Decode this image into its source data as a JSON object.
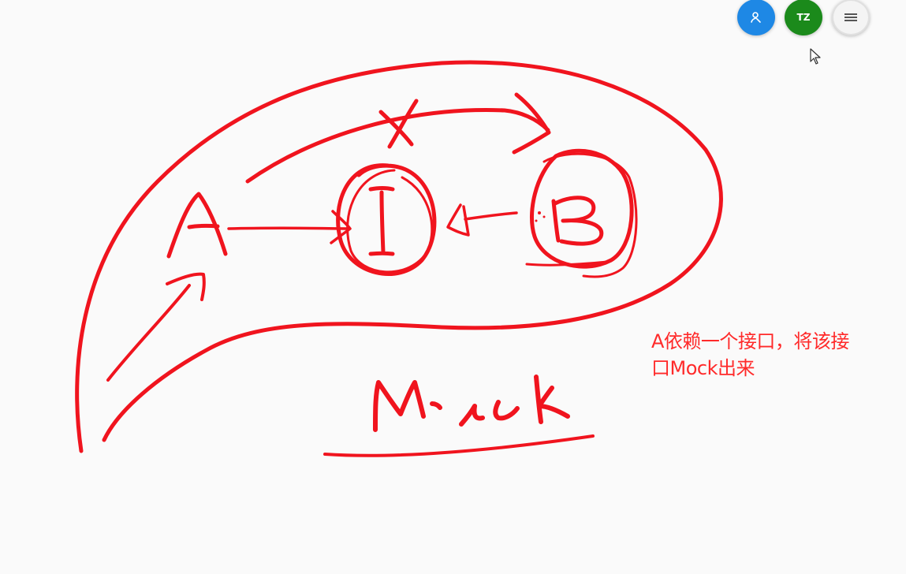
{
  "toolbar": {
    "user_button": {
      "icon": "person-icon",
      "color": "#1e88e5"
    },
    "tz_button": {
      "label": "TZ",
      "color": "#1b8a1b"
    },
    "menu_button": {
      "icon": "menu-icon"
    }
  },
  "canvas": {
    "ink_color": "#f0141e",
    "strokes": [
      "node-a",
      "node-i",
      "node-b",
      "arrow-a-to-i",
      "arrow-b-to-i",
      "crossed-arrow-a-to-b",
      "blob-outline",
      "mock-word",
      "mock-underline",
      "arrow-up-left"
    ]
  },
  "annotation": {
    "line1": "A依赖一个接口，将该接",
    "line2": "口Mock出来",
    "color": "#ff2a2a"
  }
}
